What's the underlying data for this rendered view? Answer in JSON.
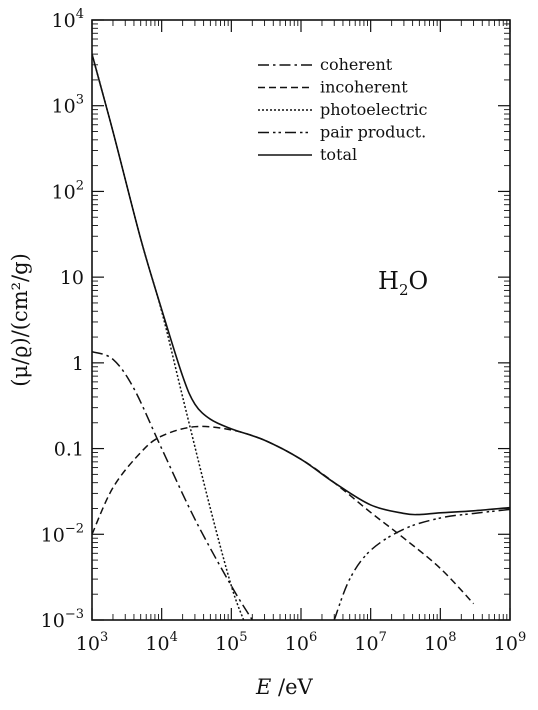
{
  "chart_data": {
    "type": "line",
    "title": "",
    "annotation": {
      "base": "H",
      "sub": "2",
      "tail": "O"
    },
    "xlabel": {
      "var": "E",
      "unit": " /eV"
    },
    "ylabel": "(μ/ϱ)/(cm²/g)",
    "xscale": "log",
    "yscale": "log",
    "xlim": [
      1000,
      1000000000
    ],
    "ylim": [
      0.001,
      10000
    ],
    "x_ticks": [
      {
        "base": "10",
        "exp": "3"
      },
      {
        "base": "10",
        "exp": "4"
      },
      {
        "base": "10",
        "exp": "5"
      },
      {
        "base": "10",
        "exp": "6"
      },
      {
        "base": "10",
        "exp": "7"
      },
      {
        "base": "10",
        "exp": "8"
      },
      {
        "base": "10",
        "exp": "9"
      }
    ],
    "y_ticks": [
      {
        "base": "10",
        "exp": "4"
      },
      {
        "base": "10",
        "exp": "3"
      },
      {
        "base": "10",
        "exp": "2"
      },
      {
        "base": "10",
        "exp": ""
      },
      {
        "base": "1",
        "exp": ""
      },
      {
        "base": "0.1",
        "exp": ""
      },
      {
        "base": "10",
        "exp": "−2"
      },
      {
        "base": "10",
        "exp": "−3"
      }
    ],
    "legend_position": "top-right",
    "series": [
      {
        "name": "coherent",
        "style": "dashdot",
        "x": [
          1000,
          2000,
          4000,
          10000,
          30000,
          100000,
          200000
        ],
        "y": [
          1.35,
          1.1,
          0.5,
          0.1,
          0.015,
          0.0025,
          0.001
        ]
      },
      {
        "name": "incoherent",
        "style": "dashed",
        "x": [
          1000,
          2000,
          5000,
          10000,
          30000,
          100000,
          300000,
          1000000,
          3000000,
          10000000,
          30000000,
          100000000,
          300000000
        ],
        "y": [
          0.01,
          0.035,
          0.09,
          0.14,
          0.18,
          0.165,
          0.125,
          0.075,
          0.04,
          0.018,
          0.009,
          0.004,
          0.00155
        ]
      },
      {
        "name": "photoelectric",
        "style": "dotted",
        "x": [
          1000,
          2000,
          5000,
          10000,
          20000,
          50000,
          100000,
          150000
        ],
        "y": [
          4000,
          500,
          28,
          4,
          0.4,
          0.02,
          0.0025,
          0.001
        ]
      },
      {
        "name": "pair product.",
        "style": "dashdotdot",
        "x": [
          3000000,
          5000000,
          10000000,
          30000000,
          100000000,
          300000000,
          1000000000
        ],
        "y": [
          0.001,
          0.003,
          0.0065,
          0.0115,
          0.0155,
          0.0175,
          0.0195
        ]
      },
      {
        "name": "total",
        "style": "solid",
        "x": [
          1000,
          2000,
          5000,
          10000,
          20000,
          30000,
          50000,
          100000,
          300000,
          1000000,
          3000000,
          10000000,
          30000000,
          50000000,
          100000000,
          300000000,
          1000000000
        ],
        "y": [
          4000,
          500,
          28,
          4.2,
          0.7,
          0.33,
          0.22,
          0.17,
          0.125,
          0.075,
          0.04,
          0.022,
          0.0175,
          0.017,
          0.0178,
          0.0188,
          0.0205
        ]
      }
    ]
  }
}
